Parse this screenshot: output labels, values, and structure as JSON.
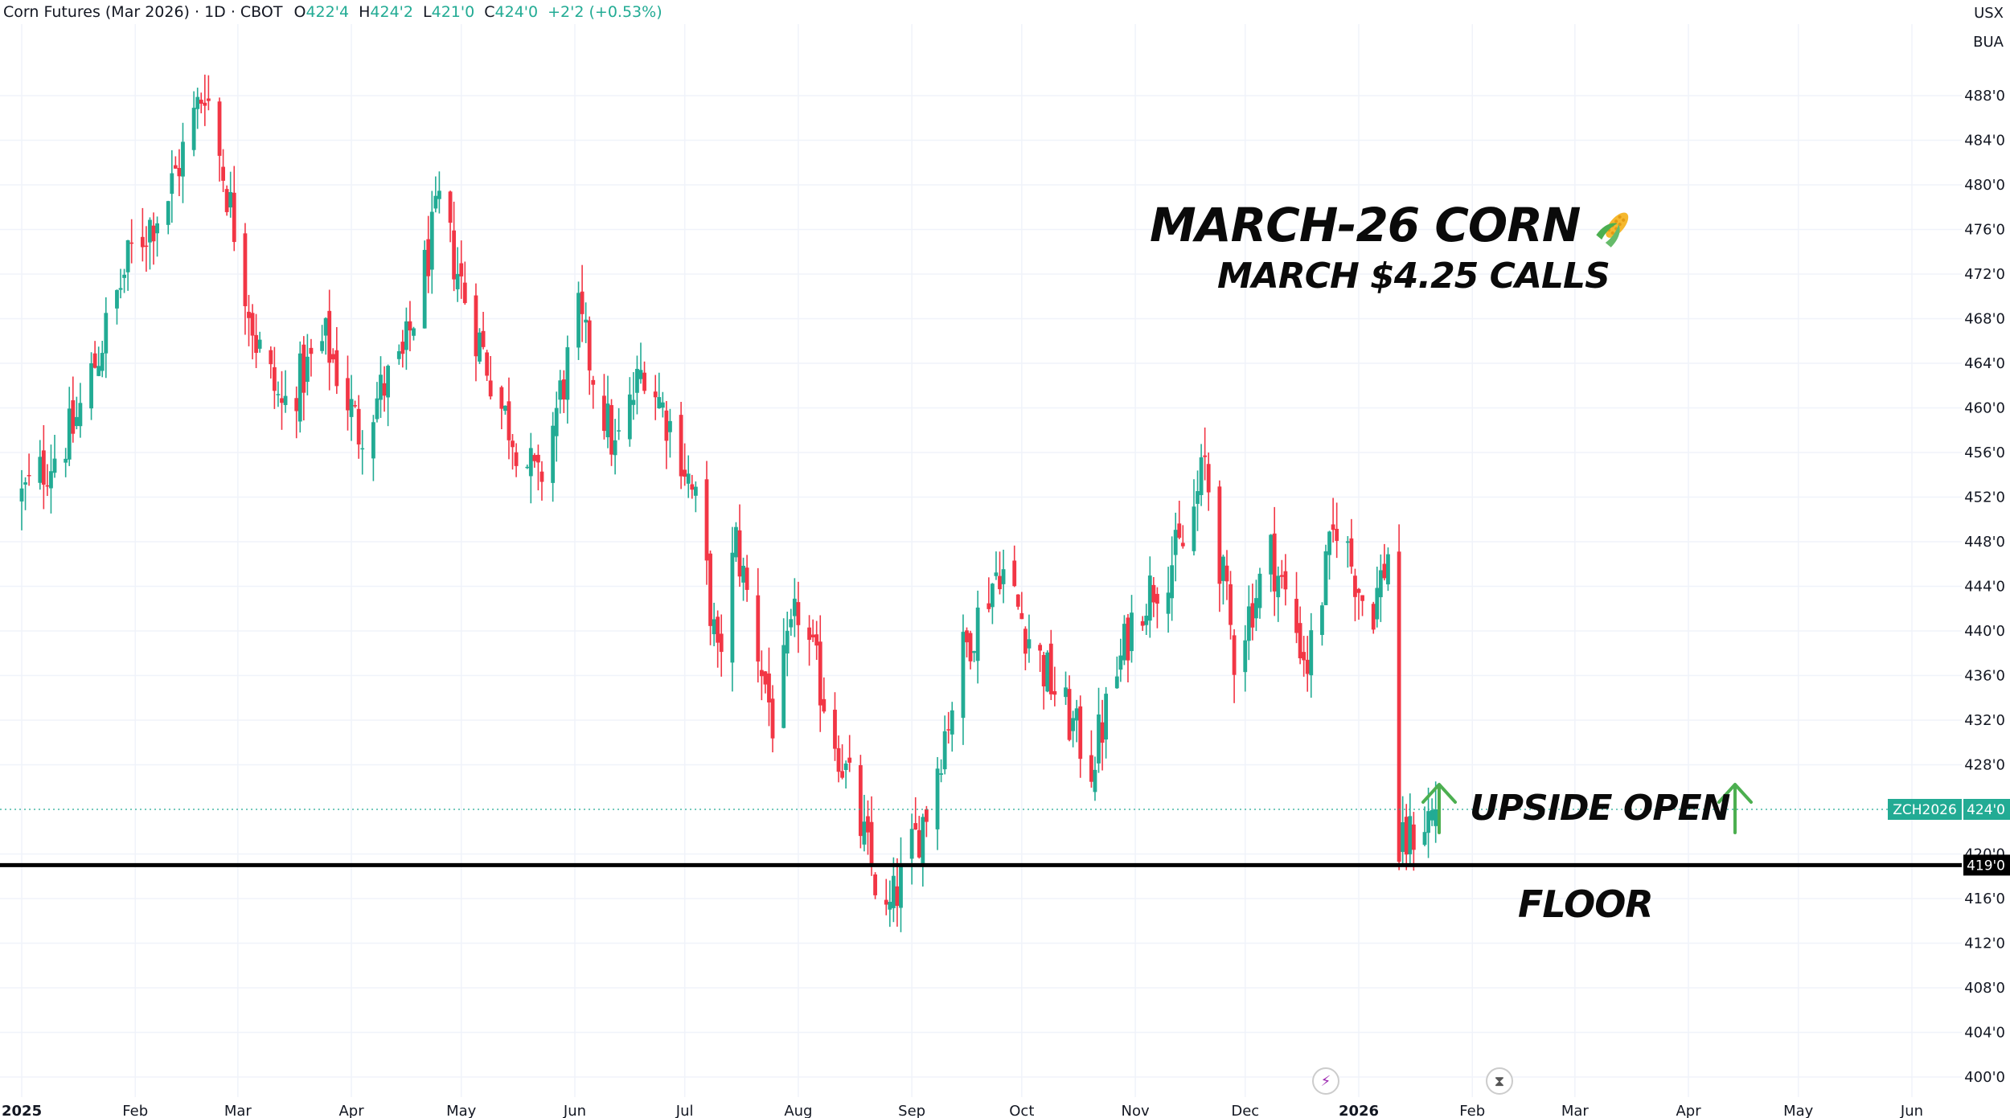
{
  "header": {
    "symbol": "Corn Futures (Mar 2026) · 1D · CBOT",
    "open_label": "O",
    "open_value": "422'4",
    "high_label": "H",
    "high_value": "424'2",
    "low_label": "L",
    "low_value": "421'0",
    "close_label": "C",
    "close_value": "424'0",
    "change": "+2'2 (+0.53%)"
  },
  "units": {
    "top": "USX",
    "bottom": "BUA"
  },
  "annotations": {
    "title": "MARCH-26 CORN",
    "subtitle": "MARCH $4.25 CALLS",
    "upside": "UPSIDE OPEN",
    "floor": "FLOOR"
  },
  "price_labels": {
    "ticker": "ZCH2026",
    "last_price": "424'0",
    "floor_price": "419'0"
  },
  "icons": [
    "lightning-icon",
    "hourglass-icon"
  ],
  "colors": {
    "up": "#22ab94",
    "down": "#f23645",
    "floor_line": "#000000",
    "price_line": "#22ab94",
    "arrow": "#4caf50"
  },
  "chart_data": {
    "type": "candlestick",
    "title": "Corn Futures (Mar 2026)",
    "y_unit": "USX/BUA",
    "y_range": [
      398,
      493
    ],
    "y_ticks": [
      "488'0",
      "484'0",
      "480'0",
      "476'0",
      "472'0",
      "468'0",
      "464'0",
      "460'0",
      "456'0",
      "452'0",
      "448'0",
      "444'0",
      "440'0",
      "436'0",
      "432'0",
      "428'0",
      "420'0",
      "416'0",
      "412'0",
      "408'0",
      "404'0",
      "400'0"
    ],
    "y_tick_values": [
      488,
      484,
      480,
      476,
      472,
      468,
      464,
      460,
      456,
      452,
      448,
      444,
      440,
      436,
      432,
      428,
      420,
      416,
      412,
      408,
      404,
      400
    ],
    "x_range": [
      "2025-01-01",
      "2026-07-31"
    ],
    "x_ticks": [
      {
        "label": "2025",
        "date": "2025-01-01",
        "bold": true
      },
      {
        "label": "Feb",
        "date": "2025-02-01"
      },
      {
        "label": "Mar",
        "date": "2025-03-01"
      },
      {
        "label": "Apr",
        "date": "2025-04-01"
      },
      {
        "label": "May",
        "date": "2025-05-01"
      },
      {
        "label": "Jun",
        "date": "2025-06-01"
      },
      {
        "label": "Jul",
        "date": "2025-07-01"
      },
      {
        "label": "Aug",
        "date": "2025-08-01"
      },
      {
        "label": "Sep",
        "date": "2025-09-01"
      },
      {
        "label": "Oct",
        "date": "2025-10-01"
      },
      {
        "label": "Nov",
        "date": "2025-11-01"
      },
      {
        "label": "Dec",
        "date": "2025-12-01"
      },
      {
        "label": "2026",
        "date": "2026-01-01",
        "bold": true
      },
      {
        "label": "Feb",
        "date": "2026-02-01"
      },
      {
        "label": "Mar",
        "date": "2026-03-01"
      },
      {
        "label": "Apr",
        "date": "2026-04-01"
      },
      {
        "label": "May",
        "date": "2026-05-01"
      },
      {
        "label": "Jun",
        "date": "2026-06-01"
      },
      {
        "label": "Jul",
        "date": "2026-07-01"
      }
    ],
    "close_path": [
      {
        "date": "2025-01-01",
        "close": 452
      },
      {
        "date": "2025-01-15",
        "close": 458
      },
      {
        "date": "2025-01-31",
        "close": 474
      },
      {
        "date": "2025-02-10",
        "close": 479
      },
      {
        "date": "2025-02-20",
        "close": 489
      },
      {
        "date": "2025-02-27",
        "close": 478
      },
      {
        "date": "2025-03-06",
        "close": 466
      },
      {
        "date": "2025-03-13",
        "close": 460
      },
      {
        "date": "2025-03-25",
        "close": 466
      },
      {
        "date": "2025-04-03",
        "close": 458
      },
      {
        "date": "2025-04-10",
        "close": 462
      },
      {
        "date": "2025-04-15",
        "close": 464
      },
      {
        "date": "2025-04-25",
        "close": 478
      },
      {
        "date": "2025-05-02",
        "close": 470
      },
      {
        "date": "2025-05-12",
        "close": 460
      },
      {
        "date": "2025-05-22",
        "close": 453
      },
      {
        "date": "2025-06-02",
        "close": 468
      },
      {
        "date": "2025-06-12",
        "close": 456
      },
      {
        "date": "2025-06-20",
        "close": 464
      },
      {
        "date": "2025-06-30",
        "close": 456
      },
      {
        "date": "2025-07-05",
        "close": 450
      },
      {
        "date": "2025-07-10",
        "close": 437
      },
      {
        "date": "2025-07-15",
        "close": 448
      },
      {
        "date": "2025-07-25",
        "close": 432
      },
      {
        "date": "2025-08-01",
        "close": 442
      },
      {
        "date": "2025-08-08",
        "close": 434
      },
      {
        "date": "2025-08-15",
        "close": 426
      },
      {
        "date": "2025-08-25",
        "close": 414
      },
      {
        "date": "2025-09-05",
        "close": 424
      },
      {
        "date": "2025-09-15",
        "close": 438
      },
      {
        "date": "2025-09-25",
        "close": 446
      },
      {
        "date": "2025-10-05",
        "close": 438
      },
      {
        "date": "2025-10-20",
        "close": 428
      },
      {
        "date": "2025-11-01",
        "close": 442
      },
      {
        "date": "2025-11-15",
        "close": 448
      },
      {
        "date": "2025-11-20",
        "close": 455
      },
      {
        "date": "2025-11-28",
        "close": 438
      },
      {
        "date": "2025-12-08",
        "close": 447
      },
      {
        "date": "2025-12-18",
        "close": 437
      },
      {
        "date": "2025-12-26",
        "close": 450
      },
      {
        "date": "2026-01-04",
        "close": 441
      },
      {
        "date": "2026-01-09",
        "close": 447
      },
      {
        "date": "2026-01-12",
        "close": 420
      },
      {
        "date": "2026-01-16",
        "close": 422
      },
      {
        "date": "2026-01-22",
        "close": 424
      }
    ],
    "last": {
      "date": "2026-01-22",
      "open": 422.5,
      "high": 424.25,
      "low": 421,
      "close": 424
    },
    "horizontal_lines": [
      {
        "name": "floor",
        "price": 419,
        "style": "solid"
      },
      {
        "name": "last-price",
        "price": 424,
        "style": "dotted"
      }
    ]
  }
}
